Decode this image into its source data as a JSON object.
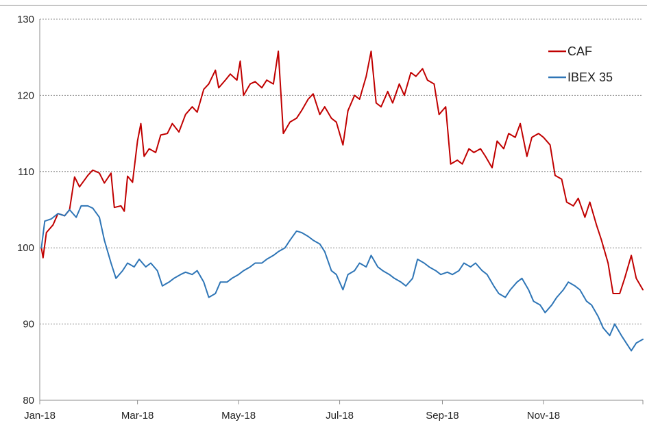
{
  "chart_data": {
    "type": "line",
    "title": "",
    "xlabel": "",
    "ylabel": "",
    "ylim": [
      80,
      130
    ],
    "yticks": [
      80,
      90,
      100,
      110,
      120,
      130
    ],
    "xtick_labels": [
      "Jan-18",
      "Mar-18",
      "May-18",
      "Jul-18",
      "Sep-18",
      "Nov-18"
    ],
    "x_range": [
      "2018-01-01",
      "2018-12-31"
    ],
    "grid": true,
    "legend_position": "top-right",
    "series": [
      {
        "name": "CAF",
        "color": "#c00000",
        "points": [
          [
            "2018-01-02",
            100.0
          ],
          [
            "2018-01-03",
            98.7
          ],
          [
            "2018-01-05",
            102.0
          ],
          [
            "2018-01-09",
            103.0
          ],
          [
            "2018-01-12",
            104.5
          ],
          [
            "2018-01-16",
            104.2
          ],
          [
            "2018-01-19",
            105.0
          ],
          [
            "2018-01-22",
            109.3
          ],
          [
            "2018-01-25",
            108.0
          ],
          [
            "2018-01-30",
            109.5
          ],
          [
            "2018-02-02",
            110.2
          ],
          [
            "2018-02-06",
            109.8
          ],
          [
            "2018-02-09",
            108.5
          ],
          [
            "2018-02-13",
            109.8
          ],
          [
            "2018-02-15",
            105.3
          ],
          [
            "2018-02-19",
            105.5
          ],
          [
            "2018-02-21",
            104.8
          ],
          [
            "2018-02-23",
            109.4
          ],
          [
            "2018-02-26",
            108.6
          ],
          [
            "2018-03-01",
            114.0
          ],
          [
            "2018-03-03",
            116.3
          ],
          [
            "2018-03-05",
            112.0
          ],
          [
            "2018-03-08",
            113.0
          ],
          [
            "2018-03-12",
            112.5
          ],
          [
            "2018-03-15",
            114.8
          ],
          [
            "2018-03-19",
            115.0
          ],
          [
            "2018-03-22",
            116.3
          ],
          [
            "2018-03-26",
            115.2
          ],
          [
            "2018-03-30",
            117.5
          ],
          [
            "2018-04-03",
            118.5
          ],
          [
            "2018-04-06",
            117.8
          ],
          [
            "2018-04-10",
            120.8
          ],
          [
            "2018-04-13",
            121.5
          ],
          [
            "2018-04-17",
            123.3
          ],
          [
            "2018-04-19",
            121.0
          ],
          [
            "2018-04-23",
            122.0
          ],
          [
            "2018-04-26",
            122.8
          ],
          [
            "2018-04-30",
            122.0
          ],
          [
            "2018-05-02",
            124.5
          ],
          [
            "2018-05-04",
            120.0
          ],
          [
            "2018-05-08",
            121.5
          ],
          [
            "2018-05-11",
            121.8
          ],
          [
            "2018-05-15",
            121.0
          ],
          [
            "2018-05-18",
            122.0
          ],
          [
            "2018-05-22",
            121.5
          ],
          [
            "2018-05-25",
            125.8
          ],
          [
            "2018-05-28",
            115.0
          ],
          [
            "2018-06-01",
            116.5
          ],
          [
            "2018-06-05",
            117.0
          ],
          [
            "2018-06-08",
            118.0
          ],
          [
            "2018-06-12",
            119.5
          ],
          [
            "2018-06-15",
            120.2
          ],
          [
            "2018-06-19",
            117.5
          ],
          [
            "2018-06-22",
            118.5
          ],
          [
            "2018-06-26",
            117.0
          ],
          [
            "2018-06-29",
            116.5
          ],
          [
            "2018-07-03",
            113.5
          ],
          [
            "2018-07-06",
            118.0
          ],
          [
            "2018-07-10",
            120.0
          ],
          [
            "2018-07-13",
            119.5
          ],
          [
            "2018-07-17",
            122.5
          ],
          [
            "2018-07-20",
            125.8
          ],
          [
            "2018-07-23",
            119.0
          ],
          [
            "2018-07-26",
            118.5
          ],
          [
            "2018-07-30",
            120.5
          ],
          [
            "2018-08-02",
            119.0
          ],
          [
            "2018-08-06",
            121.5
          ],
          [
            "2018-08-09",
            120.0
          ],
          [
            "2018-08-13",
            123.0
          ],
          [
            "2018-08-16",
            122.5
          ],
          [
            "2018-08-20",
            123.5
          ],
          [
            "2018-08-23",
            122.0
          ],
          [
            "2018-08-27",
            121.5
          ],
          [
            "2018-08-30",
            117.5
          ],
          [
            "2018-09-03",
            118.5
          ],
          [
            "2018-09-06",
            111.0
          ],
          [
            "2018-09-10",
            111.5
          ],
          [
            "2018-09-13",
            111.0
          ],
          [
            "2018-09-17",
            113.0
          ],
          [
            "2018-09-20",
            112.5
          ],
          [
            "2018-09-24",
            113.0
          ],
          [
            "2018-09-27",
            112.0
          ],
          [
            "2018-10-01",
            110.5
          ],
          [
            "2018-10-04",
            114.0
          ],
          [
            "2018-10-08",
            113.0
          ],
          [
            "2018-10-11",
            115.0
          ],
          [
            "2018-10-15",
            114.5
          ],
          [
            "2018-10-18",
            116.3
          ],
          [
            "2018-10-22",
            112.0
          ],
          [
            "2018-10-25",
            114.5
          ],
          [
            "2018-10-29",
            115.0
          ],
          [
            "2018-11-01",
            114.5
          ],
          [
            "2018-11-05",
            113.5
          ],
          [
            "2018-11-08",
            109.5
          ],
          [
            "2018-11-12",
            109.0
          ],
          [
            "2018-11-15",
            106.0
          ],
          [
            "2018-11-19",
            105.5
          ],
          [
            "2018-11-22",
            106.5
          ],
          [
            "2018-11-26",
            104.0
          ],
          [
            "2018-11-29",
            106.0
          ],
          [
            "2018-12-03",
            103.0
          ],
          [
            "2018-12-06",
            101.0
          ],
          [
            "2018-12-10",
            98.0
          ],
          [
            "2018-12-13",
            94.0
          ],
          [
            "2018-12-17",
            94.0
          ],
          [
            "2018-12-20",
            96.0
          ],
          [
            "2018-12-24",
            99.0
          ],
          [
            "2018-12-27",
            96.0
          ],
          [
            "2018-12-31",
            94.5
          ]
        ]
      },
      {
        "name": "IBEX 35",
        "color": "#2e75b6",
        "points": [
          [
            "2018-01-02",
            100.0
          ],
          [
            "2018-01-04",
            103.5
          ],
          [
            "2018-01-08",
            103.8
          ],
          [
            "2018-01-12",
            104.5
          ],
          [
            "2018-01-16",
            104.2
          ],
          [
            "2018-01-19",
            105.0
          ],
          [
            "2018-01-23",
            104.0
          ],
          [
            "2018-01-26",
            105.5
          ],
          [
            "2018-01-30",
            105.5
          ],
          [
            "2018-02-02",
            105.2
          ],
          [
            "2018-02-06",
            104.0
          ],
          [
            "2018-02-09",
            101.0
          ],
          [
            "2018-02-13",
            98.0
          ],
          [
            "2018-02-16",
            96.0
          ],
          [
            "2018-02-20",
            97.0
          ],
          [
            "2018-02-23",
            98.0
          ],
          [
            "2018-02-27",
            97.5
          ],
          [
            "2018-03-02",
            98.5
          ],
          [
            "2018-03-06",
            97.5
          ],
          [
            "2018-03-09",
            98.0
          ],
          [
            "2018-03-13",
            97.0
          ],
          [
            "2018-03-16",
            95.0
          ],
          [
            "2018-03-20",
            95.5
          ],
          [
            "2018-03-23",
            96.0
          ],
          [
            "2018-03-27",
            96.5
          ],
          [
            "2018-03-30",
            96.8
          ],
          [
            "2018-04-03",
            96.5
          ],
          [
            "2018-04-06",
            97.0
          ],
          [
            "2018-04-10",
            95.5
          ],
          [
            "2018-04-13",
            93.5
          ],
          [
            "2018-04-17",
            94.0
          ],
          [
            "2018-04-20",
            95.5
          ],
          [
            "2018-04-24",
            95.5
          ],
          [
            "2018-04-27",
            96.0
          ],
          [
            "2018-05-01",
            96.5
          ],
          [
            "2018-05-04",
            97.0
          ],
          [
            "2018-05-08",
            97.5
          ],
          [
            "2018-05-11",
            98.0
          ],
          [
            "2018-05-15",
            98.0
          ],
          [
            "2018-05-18",
            98.5
          ],
          [
            "2018-05-22",
            99.0
          ],
          [
            "2018-05-25",
            99.5
          ],
          [
            "2018-05-29",
            100.0
          ],
          [
            "2018-06-01",
            101.0
          ],
          [
            "2018-06-05",
            102.2
          ],
          [
            "2018-06-08",
            102.0
          ],
          [
            "2018-06-12",
            101.5
          ],
          [
            "2018-06-15",
            101.0
          ],
          [
            "2018-06-19",
            100.5
          ],
          [
            "2018-06-22",
            99.5
          ],
          [
            "2018-06-26",
            97.0
          ],
          [
            "2018-06-29",
            96.5
          ],
          [
            "2018-07-03",
            94.5
          ],
          [
            "2018-07-06",
            96.5
          ],
          [
            "2018-07-10",
            97.0
          ],
          [
            "2018-07-13",
            98.0
          ],
          [
            "2018-07-17",
            97.5
          ],
          [
            "2018-07-20",
            99.0
          ],
          [
            "2018-07-24",
            97.5
          ],
          [
            "2018-07-27",
            97.0
          ],
          [
            "2018-07-31",
            96.5
          ],
          [
            "2018-08-03",
            96.0
          ],
          [
            "2018-08-07",
            95.5
          ],
          [
            "2018-08-10",
            95.0
          ],
          [
            "2018-08-14",
            96.0
          ],
          [
            "2018-08-17",
            98.5
          ],
          [
            "2018-08-21",
            98.0
          ],
          [
            "2018-08-24",
            97.5
          ],
          [
            "2018-08-28",
            97.0
          ],
          [
            "2018-08-31",
            96.5
          ],
          [
            "2018-09-04",
            96.8
          ],
          [
            "2018-09-07",
            96.5
          ],
          [
            "2018-09-11",
            97.0
          ],
          [
            "2018-09-14",
            98.0
          ],
          [
            "2018-09-18",
            97.5
          ],
          [
            "2018-09-21",
            98.0
          ],
          [
            "2018-09-25",
            97.0
          ],
          [
            "2018-09-28",
            96.5
          ],
          [
            "2018-10-02",
            95.0
          ],
          [
            "2018-10-05",
            94.0
          ],
          [
            "2018-10-09",
            93.5
          ],
          [
            "2018-10-12",
            94.5
          ],
          [
            "2018-10-16",
            95.5
          ],
          [
            "2018-10-19",
            96.0
          ],
          [
            "2018-10-23",
            94.5
          ],
          [
            "2018-10-26",
            93.0
          ],
          [
            "2018-10-30",
            92.5
          ],
          [
            "2018-11-02",
            91.5
          ],
          [
            "2018-11-06",
            92.5
          ],
          [
            "2018-11-09",
            93.5
          ],
          [
            "2018-11-13",
            94.5
          ],
          [
            "2018-11-16",
            95.5
          ],
          [
            "2018-11-20",
            95.0
          ],
          [
            "2018-11-23",
            94.5
          ],
          [
            "2018-11-27",
            93.0
          ],
          [
            "2018-11-30",
            92.5
          ],
          [
            "2018-12-04",
            91.0
          ],
          [
            "2018-12-07",
            89.5
          ],
          [
            "2018-12-11",
            88.5
          ],
          [
            "2018-12-14",
            90.0
          ],
          [
            "2018-12-18",
            88.5
          ],
          [
            "2018-12-21",
            87.5
          ],
          [
            "2018-12-24",
            86.5
          ],
          [
            "2018-12-27",
            87.5
          ],
          [
            "2018-12-31",
            88.0
          ]
        ]
      }
    ]
  }
}
